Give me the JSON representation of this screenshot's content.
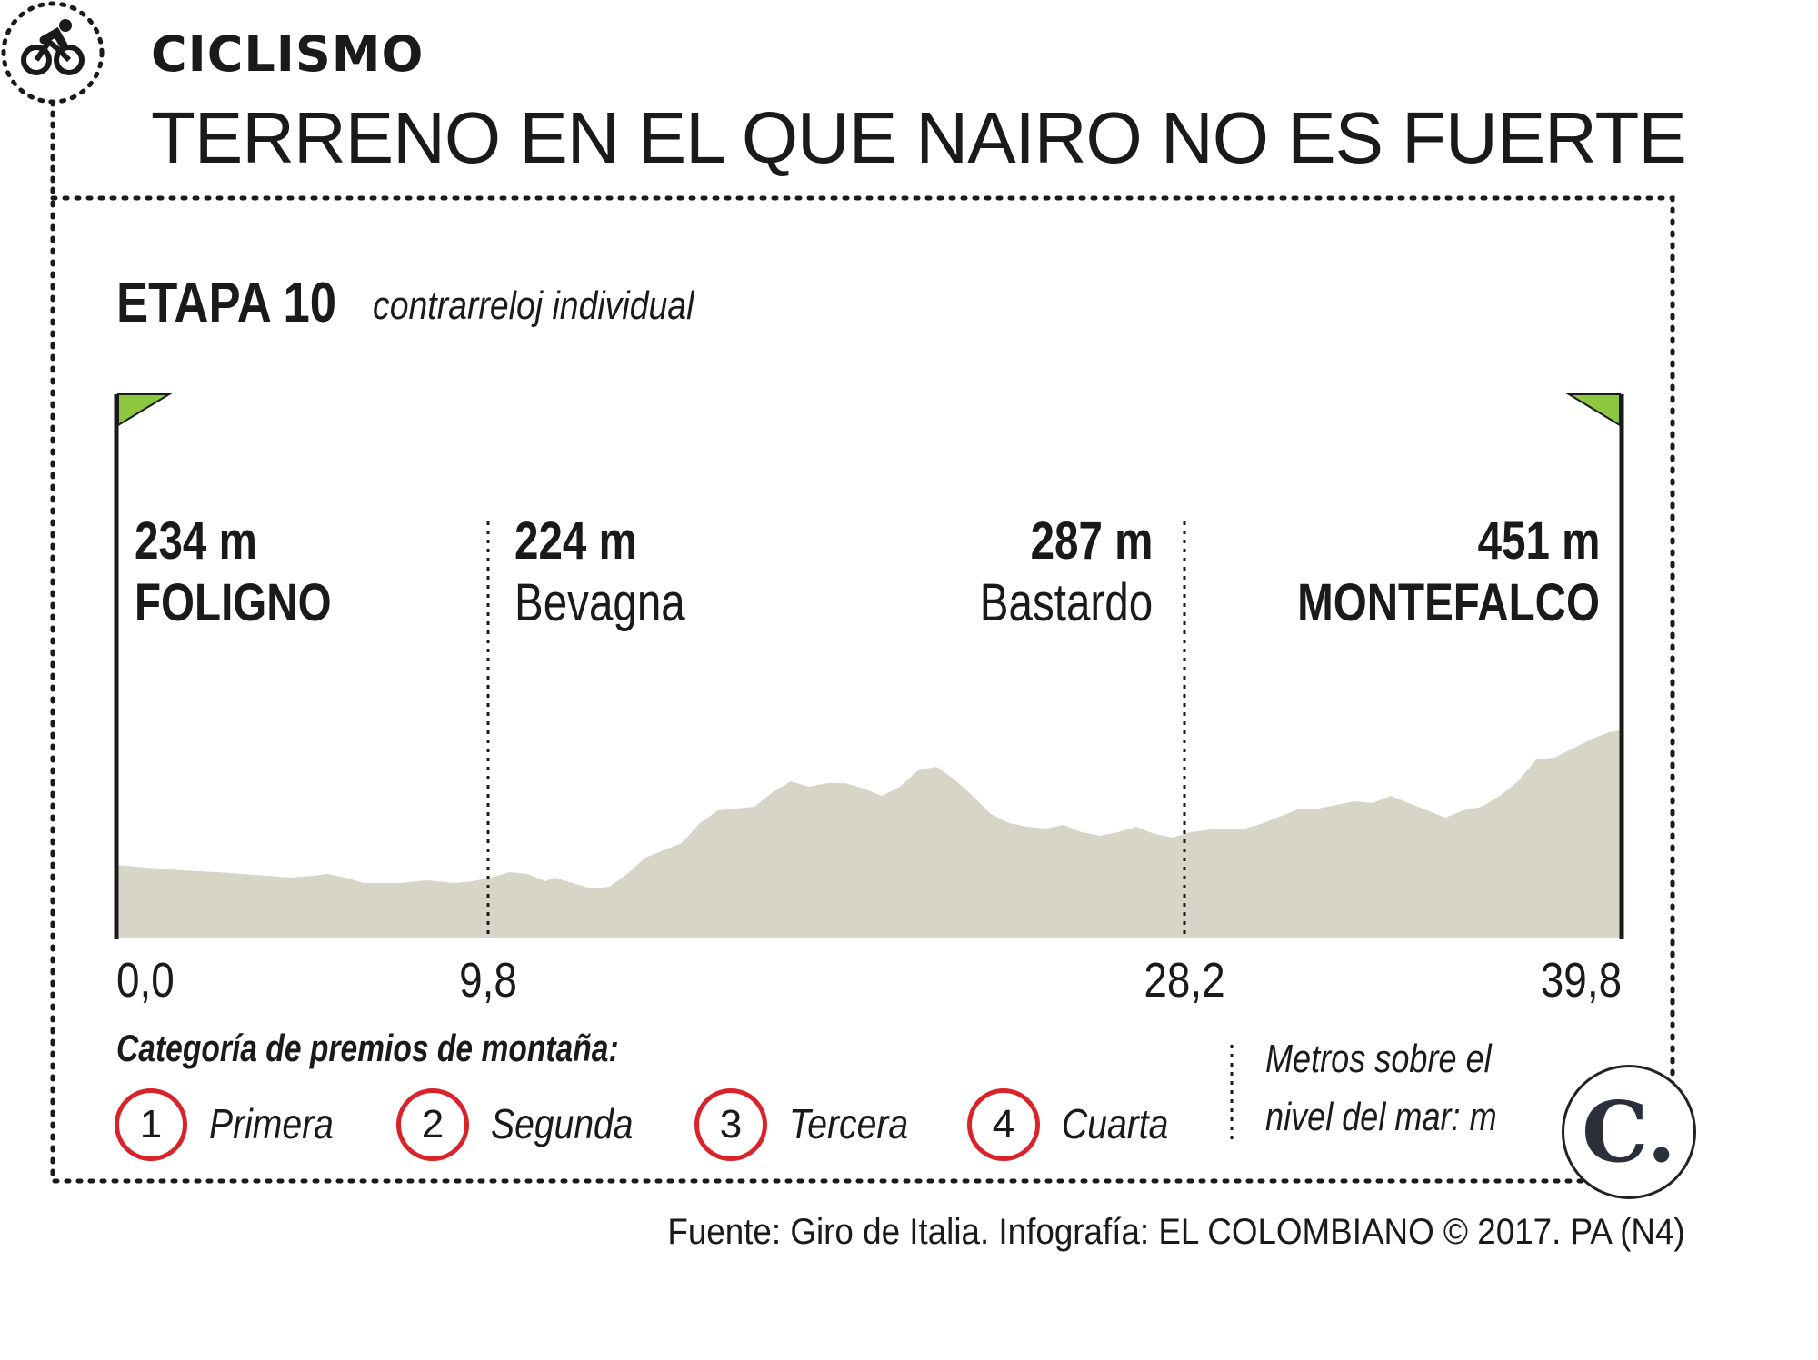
{
  "header": {
    "section": "CICLISMO",
    "headline": "TERRENO EN EL QUE NAIRO NO ES FUERTE",
    "icon": "cyclist-icon"
  },
  "stage": {
    "title": "ETAPA 10",
    "type": "contrarreloj individual"
  },
  "profile": {
    "locations": [
      {
        "altitude": "234 m",
        "name": "FOLIGNO",
        "km": "0,0"
      },
      {
        "altitude": "224 m",
        "name": "Bevagna",
        "km": "9,8"
      },
      {
        "altitude": "287 m",
        "name": "Bastardo",
        "km": "28,2"
      },
      {
        "altitude": "451 m",
        "name": "MONTEFALCO",
        "km": "39,8"
      }
    ],
    "start_flag_color": "#8dc63f",
    "finish_flag_color": "#8dc63f",
    "terrain_color": "#d6d5c7"
  },
  "categories": {
    "title": "Categoría de premios de montaña:",
    "items": [
      {
        "number": "1",
        "label": "Primera"
      },
      {
        "number": "2",
        "label": "Segunda"
      },
      {
        "number": "3",
        "label": "Tercera"
      },
      {
        "number": "4",
        "label": "Cuarta"
      }
    ],
    "badge_color": "#d9222a"
  },
  "note": {
    "line1": "Metros sobre el",
    "line2": "nivel del mar: m"
  },
  "logo": {
    "text": "C."
  },
  "source": "Fuente: Giro de Italia. Infografía: EL COLOMBIANO © 2017. PA (N4)"
}
